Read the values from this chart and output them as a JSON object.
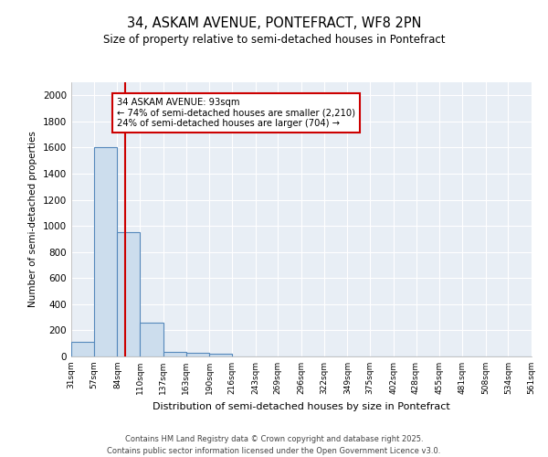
{
  "title": "34, ASKAM AVENUE, PONTEFRACT, WF8 2PN",
  "subtitle": "Size of property relative to semi-detached houses in Pontefract",
  "xlabel": "Distribution of semi-detached houses by size in Pontefract",
  "ylabel": "Number of semi-detached properties",
  "bar_values": [
    113,
    1600,
    950,
    260,
    35,
    25,
    18,
    0,
    0,
    0,
    0,
    0,
    0,
    0,
    0,
    0,
    0,
    0,
    0,
    0
  ],
  "bar_color": "#ccdded",
  "bar_edge_color": "#5588bb",
  "vline_color": "#cc0000",
  "annotation_text": "34 ASKAM AVENUE: 93sqm\n← 74% of semi-detached houses are smaller (2,210)\n24% of semi-detached houses are larger (704) →",
  "annotation_box_color": "#ffffff",
  "annotation_box_edge": "#cc0000",
  "ylim": [
    0,
    2100
  ],
  "yticks": [
    0,
    200,
    400,
    600,
    800,
    1000,
    1200,
    1400,
    1600,
    1800,
    2000
  ],
  "background_color": "#e8eef5",
  "grid_color": "#ffffff",
  "footer": "Contains HM Land Registry data © Crown copyright and database right 2025.\nContains public sector information licensed under the Open Government Licence v3.0.",
  "bin_edges": [
    31,
    57,
    84,
    110,
    137,
    163,
    190,
    216,
    243,
    269,
    296,
    322,
    349,
    375,
    402,
    428,
    455,
    481,
    508,
    534,
    561
  ]
}
